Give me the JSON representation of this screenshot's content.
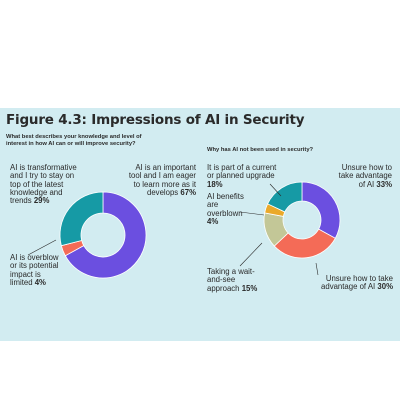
{
  "title": "Figure 4.3: Impressions of AI in Security",
  "colors": {
    "panel": "#d2ecf1",
    "purple": "#6b4fe0",
    "coral": "#f46b57",
    "teal": "#169aa5",
    "sage": "#c3c797",
    "gold": "#eaa92a"
  },
  "chart_data": [
    {
      "type": "pie",
      "title": "What best describes your knowledge and level of interest in how AI can or will improve security?",
      "slices": [
        {
          "label": "AI is an important tool and I am eager to learn more as it develops",
          "value": 67,
          "value_label": "67%",
          "color": "#6b4fe0"
        },
        {
          "label": "AI is overblow or its potential impact is limited",
          "value": 4,
          "value_label": "4%",
          "color": "#f46b57"
        },
        {
          "label": "AI is transformative and I try to stay on top of the latest knowledge and trends",
          "value": 29,
          "value_label": "29%",
          "color": "#169aa5"
        }
      ]
    },
    {
      "type": "pie",
      "title": "Why has AI not been used in security?",
      "slices": [
        {
          "label": "Unsure how to take advantage of AI",
          "value": 33,
          "value_label": "33%",
          "color": "#6b4fe0"
        },
        {
          "label": "Unsure how to take advantage of AI",
          "value": 30,
          "value_label": "30%",
          "color": "#f46b57"
        },
        {
          "label": "Taking a wait-and-see approach",
          "value": 15,
          "value_label": "15%",
          "color": "#c3c797"
        },
        {
          "label": "AI benefits are overblown",
          "value": 4,
          "value_label": "4%",
          "color": "#eaa92a"
        },
        {
          "label": "It is part of a current or planned upgrade",
          "value": 18,
          "value_label": "18%",
          "color": "#169aa5"
        }
      ]
    }
  ]
}
